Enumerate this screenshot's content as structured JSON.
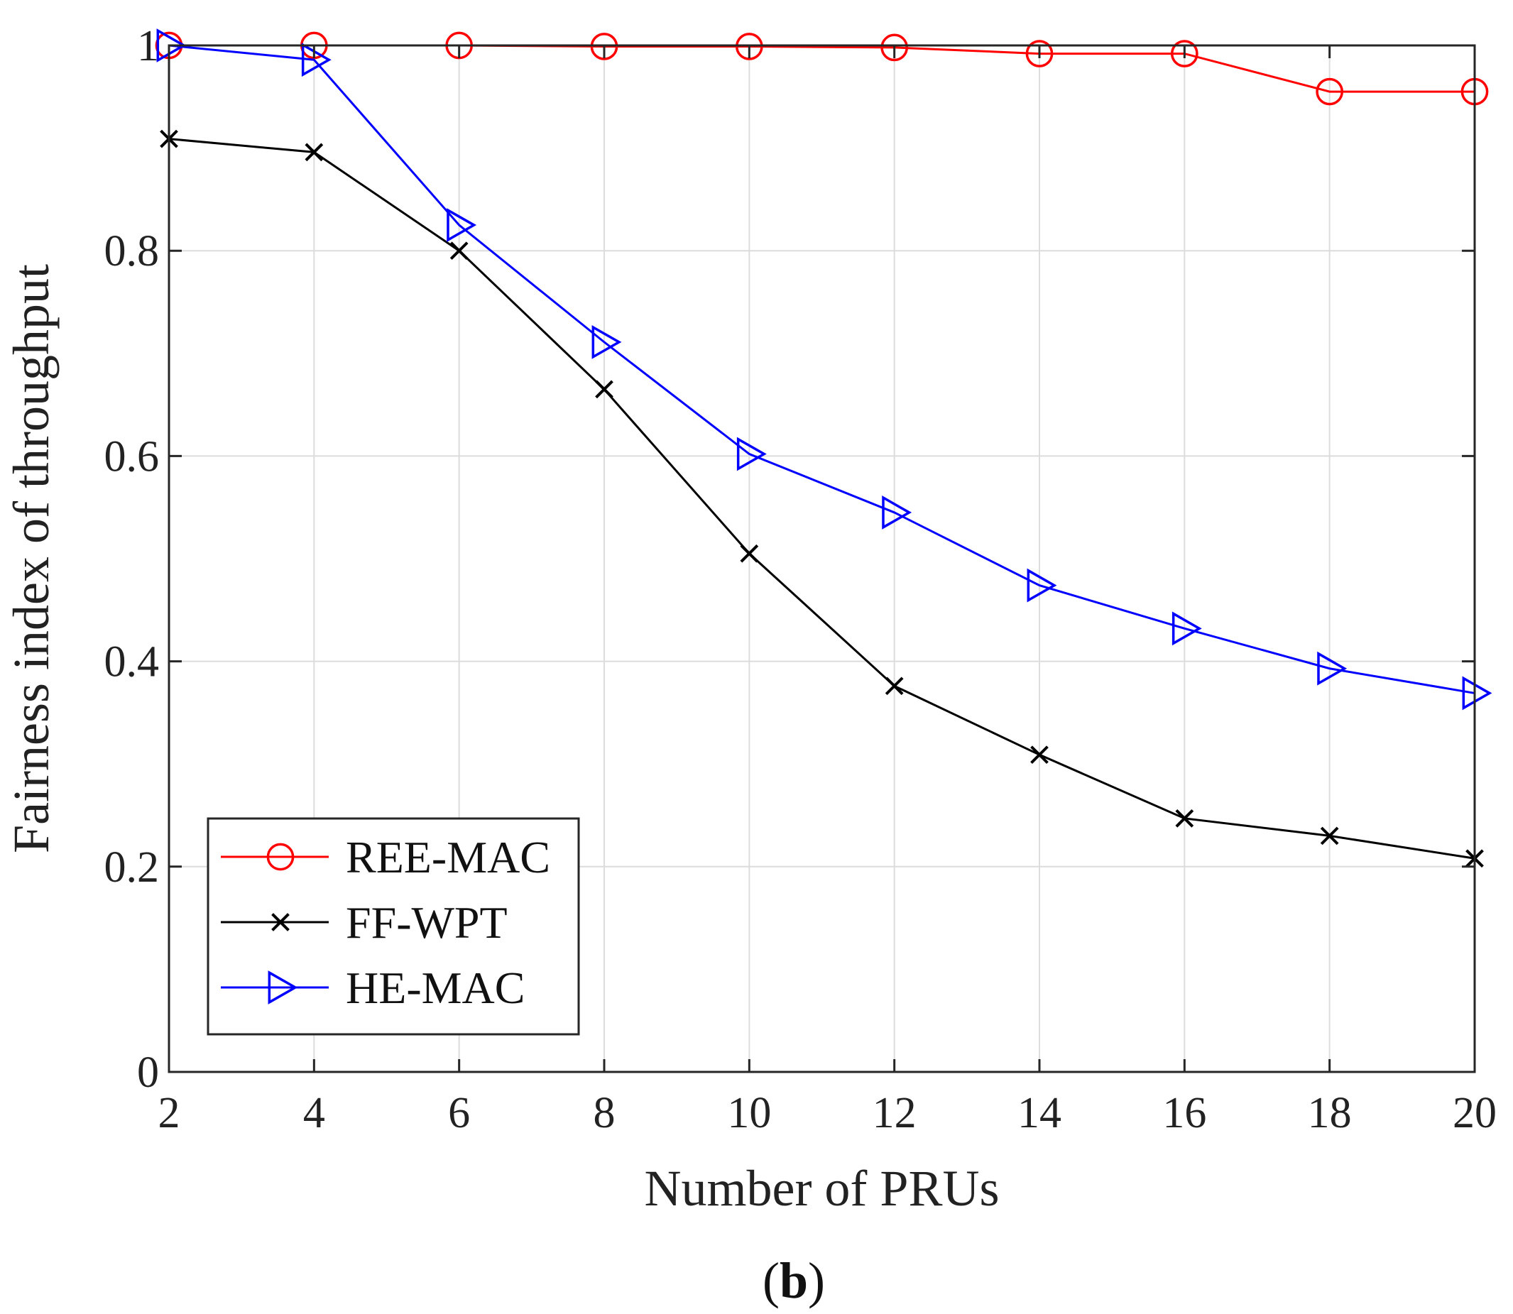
{
  "chart_data": {
    "type": "line",
    "title": "",
    "xlabel": "Number of PRUs",
    "ylabel": "Fairness index of throughput",
    "panel_label": {
      "open": "(",
      "letter": "b",
      "close": ")"
    },
    "x": [
      2,
      4,
      6,
      8,
      10,
      12,
      14,
      16,
      18,
      20
    ],
    "xlim": [
      2,
      20
    ],
    "ylim": [
      0,
      1
    ],
    "xticks": [
      2,
      4,
      6,
      8,
      10,
      12,
      14,
      16,
      18,
      20
    ],
    "yticks": [
      0,
      0.2,
      0.4,
      0.6,
      0.8,
      1
    ],
    "xtick_labels": [
      "2",
      "4",
      "6",
      "8",
      "10",
      "12",
      "14",
      "16",
      "18",
      "20"
    ],
    "ytick_labels": [
      "0",
      "0.2",
      "0.4",
      "0.6",
      "0.8",
      "1"
    ],
    "grid": true,
    "legend_position": "bottom-left",
    "series": [
      {
        "name": "REE-MAC",
        "color": "#ff0000",
        "marker": "circle",
        "values": [
          1.0,
          1.0,
          1.0,
          0.999,
          0.999,
          0.998,
          0.992,
          0.992,
          0.955,
          0.955
        ]
      },
      {
        "name": "FF-WPT",
        "color": "#000000",
        "marker": "x",
        "values": [
          0.909,
          0.896,
          0.8,
          0.665,
          0.505,
          0.376,
          0.309,
          0.247,
          0.23,
          0.208
        ]
      },
      {
        "name": "HE-MAC",
        "color": "#0000ff",
        "marker": "triangle-right",
        "values": [
          1.0,
          0.986,
          0.825,
          0.711,
          0.602,
          0.545,
          0.474,
          0.432,
          0.393,
          0.369
        ]
      }
    ]
  }
}
